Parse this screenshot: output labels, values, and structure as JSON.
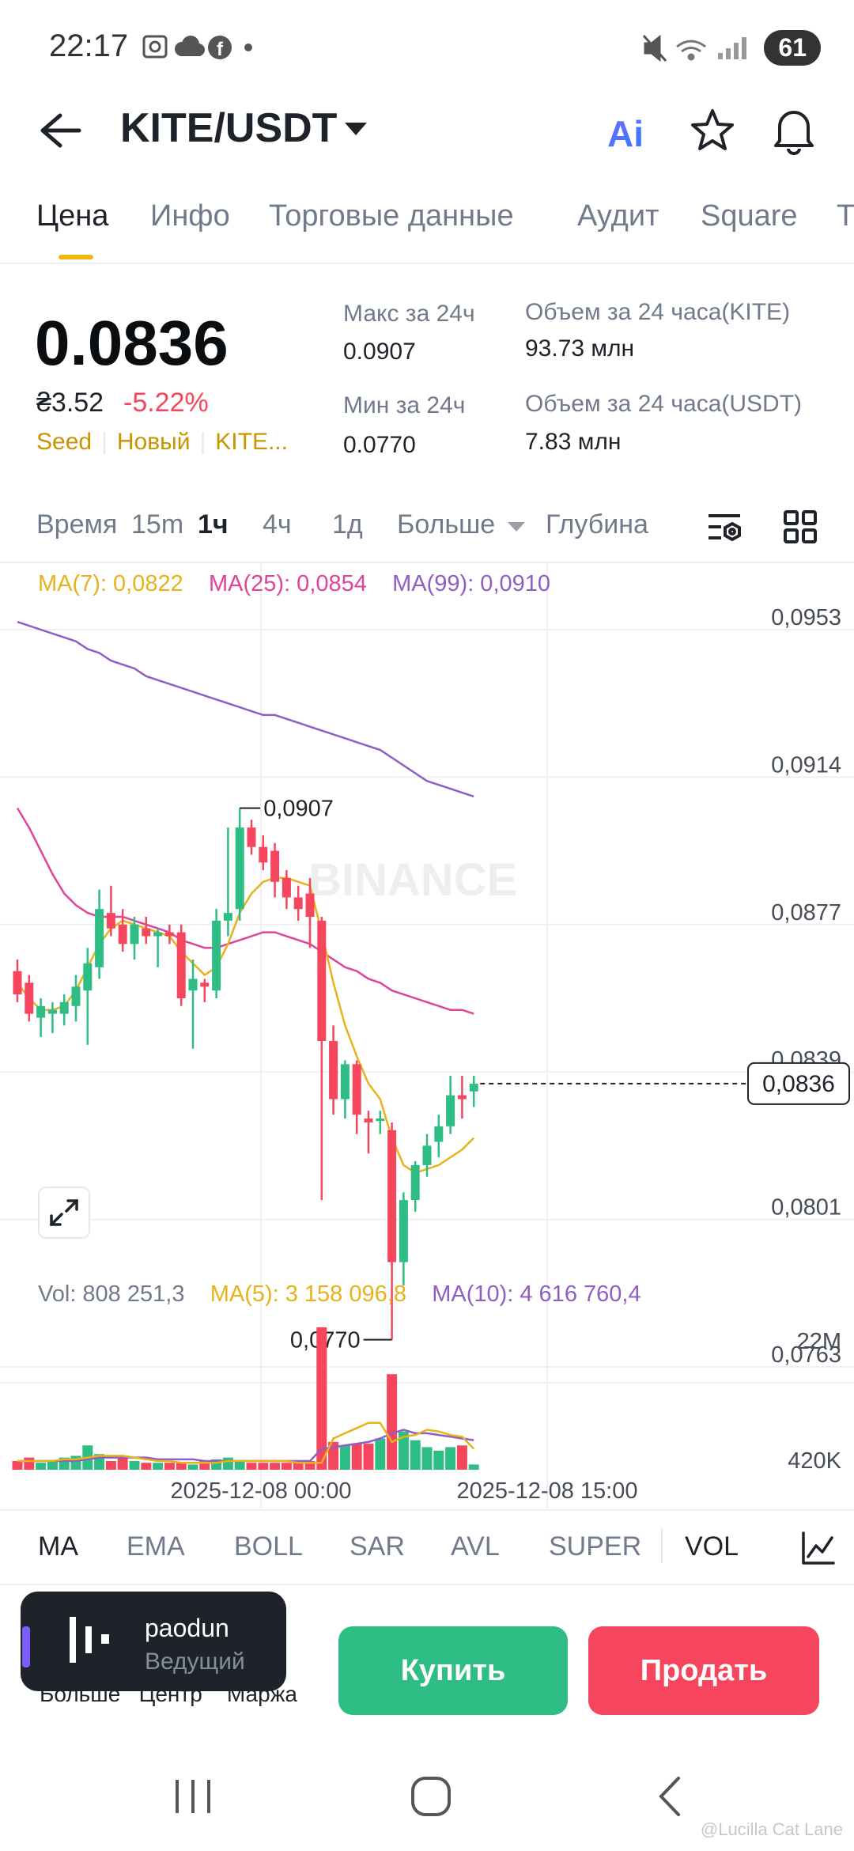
{
  "status_bar": {
    "time": "22:17",
    "battery": "61",
    "icons_left": [
      "screenshot-icon",
      "cloud-icon",
      "facebook-icon",
      "dot-icon"
    ],
    "icons_right": [
      "mute-icon",
      "wifi-icon",
      "signal-icon",
      "battery-icon"
    ]
  },
  "header": {
    "pair": "KITE/USDT",
    "ai_label": "Ai"
  },
  "tabs": [
    {
      "label": "Цена",
      "active": true
    },
    {
      "label": "Инфо"
    },
    {
      "label": "Торговые данные"
    },
    {
      "label": "Аудит"
    },
    {
      "label": "Square"
    },
    {
      "label": "Т"
    }
  ],
  "price": {
    "last": "0.0836",
    "uah": "₴3.52",
    "change": "-5.22%",
    "tags": [
      "Seed",
      "Новый",
      "KITE..."
    ]
  },
  "stats": {
    "high_label": "Макс за 24ч",
    "high_value": "0.0907",
    "low_label": "Мин за 24ч",
    "low_value": "0.0770",
    "vol_base_label": "Объем за 24 часа(KITE)",
    "vol_base_value": "93.73 млн",
    "vol_quote_label": "Объем за 24 часа(USDT)",
    "vol_quote_value": "7.83 млн"
  },
  "intervals": {
    "items": [
      "Время",
      "15m",
      "1ч",
      "4ч",
      "1д",
      "Больше",
      "Глубина"
    ],
    "active": "1ч"
  },
  "ma_legend": {
    "ma7": "MA(7): 0,0822",
    "ma25": "MA(25): 0,0854",
    "ma99": "MA(99): 0,0910"
  },
  "vol_legend": {
    "vol": "Vol: 808 251,3",
    "ma5": "MA(5): 3 158 096,8",
    "ma10": "MA(10): 4 616 760,4"
  },
  "colors": {
    "up": "#2ebd85",
    "down": "#f6465d",
    "ma7": "#e8b21c",
    "ma25": "#e0449a",
    "ma99": "#8e5ec3",
    "accent": "#f0b90b"
  },
  "chart_data": {
    "type": "candlestick",
    "watermark": "BINANCE",
    "y_ticks": [
      "0,0953",
      "0,0914",
      "0,0877",
      "0,0839",
      "0,0801",
      "0,0763"
    ],
    "ylim": [
      0.0763,
      0.0953
    ],
    "current_price_label": "0,0836",
    "high_label": "0,0907",
    "low_label": "0,0770",
    "x_ticks": [
      "2025-12-08 00:00",
      "2025-12-08 15:00"
    ],
    "volume_ticks": [
      "22M",
      "420K"
    ],
    "candles": [
      {
        "o": 0.0865,
        "h": 0.0868,
        "l": 0.0857,
        "c": 0.0859
      },
      {
        "o": 0.0862,
        "h": 0.0864,
        "l": 0.0852,
        "c": 0.0854
      },
      {
        "o": 0.0853,
        "h": 0.0858,
        "l": 0.0848,
        "c": 0.0856
      },
      {
        "o": 0.0854,
        "h": 0.0857,
        "l": 0.0849,
        "c": 0.0855
      },
      {
        "o": 0.0854,
        "h": 0.0859,
        "l": 0.0851,
        "c": 0.0857
      },
      {
        "o": 0.0856,
        "h": 0.0864,
        "l": 0.0852,
        "c": 0.0861
      },
      {
        "o": 0.086,
        "h": 0.0871,
        "l": 0.0846,
        "c": 0.0867
      },
      {
        "o": 0.0866,
        "h": 0.0886,
        "l": 0.0863,
        "c": 0.0881
      },
      {
        "o": 0.088,
        "h": 0.0887,
        "l": 0.0874,
        "c": 0.0876
      },
      {
        "o": 0.0877,
        "h": 0.0881,
        "l": 0.087,
        "c": 0.0872
      },
      {
        "o": 0.0872,
        "h": 0.0879,
        "l": 0.0868,
        "c": 0.0877
      },
      {
        "o": 0.0876,
        "h": 0.0879,
        "l": 0.0872,
        "c": 0.0874
      },
      {
        "o": 0.0874,
        "h": 0.0876,
        "l": 0.0866,
        "c": 0.0875
      },
      {
        "o": 0.0875,
        "h": 0.0877,
        "l": 0.0872,
        "c": 0.0874
      },
      {
        "o": 0.0875,
        "h": 0.0877,
        "l": 0.0856,
        "c": 0.0858
      },
      {
        "o": 0.086,
        "h": 0.0868,
        "l": 0.0845,
        "c": 0.0863
      },
      {
        "o": 0.0862,
        "h": 0.0863,
        "l": 0.0857,
        "c": 0.0861
      },
      {
        "o": 0.086,
        "h": 0.0881,
        "l": 0.0858,
        "c": 0.0878
      },
      {
        "o": 0.0878,
        "h": 0.0902,
        "l": 0.0874,
        "c": 0.088
      },
      {
        "o": 0.0881,
        "h": 0.0907,
        "l": 0.0878,
        "c": 0.0902
      },
      {
        "o": 0.0902,
        "h": 0.0904,
        "l": 0.0895,
        "c": 0.0897
      },
      {
        "o": 0.0897,
        "h": 0.09,
        "l": 0.0891,
        "c": 0.0893
      },
      {
        "o": 0.0896,
        "h": 0.0898,
        "l": 0.0884,
        "c": 0.0888
      },
      {
        "o": 0.0889,
        "h": 0.0891,
        "l": 0.0881,
        "c": 0.0884
      },
      {
        "o": 0.0884,
        "h": 0.0887,
        "l": 0.0878,
        "c": 0.0881
      },
      {
        "o": 0.0885,
        "h": 0.0889,
        "l": 0.0871,
        "c": 0.0879
      },
      {
        "o": 0.0878,
        "h": 0.0879,
        "l": 0.0806,
        "c": 0.0847
      },
      {
        "o": 0.0847,
        "h": 0.0851,
        "l": 0.0828,
        "c": 0.0832
      },
      {
        "o": 0.0832,
        "h": 0.0842,
        "l": 0.0827,
        "c": 0.0841
      },
      {
        "o": 0.0841,
        "h": 0.0842,
        "l": 0.0823,
        "c": 0.0828
      },
      {
        "o": 0.0827,
        "h": 0.0829,
        "l": 0.0818,
        "c": 0.0826
      },
      {
        "o": 0.0827,
        "h": 0.0829,
        "l": 0.0823,
        "c": 0.0827
      },
      {
        "o": 0.0824,
        "h": 0.0826,
        "l": 0.077,
        "c": 0.079
      },
      {
        "o": 0.079,
        "h": 0.0808,
        "l": 0.0784,
        "c": 0.0806
      },
      {
        "o": 0.0806,
        "h": 0.0816,
        "l": 0.0803,
        "c": 0.0815
      },
      {
        "o": 0.0815,
        "h": 0.0823,
        "l": 0.0812,
        "c": 0.082
      },
      {
        "o": 0.0821,
        "h": 0.0828,
        "l": 0.0817,
        "c": 0.0825
      },
      {
        "o": 0.0825,
        "h": 0.0838,
        "l": 0.0823,
        "c": 0.0833
      },
      {
        "o": 0.0833,
        "h": 0.0838,
        "l": 0.0827,
        "c": 0.0832
      },
      {
        "o": 0.0834,
        "h": 0.0838,
        "l": 0.083,
        "c": 0.0836
      }
    ],
    "volumes": [
      0.05,
      0.07,
      0.04,
      0.05,
      0.07,
      0.08,
      0.14,
      0.09,
      0.05,
      0.08,
      0.05,
      0.04,
      0.04,
      0.04,
      0.04,
      0.03,
      0.05,
      0.06,
      0.07,
      0.05,
      0.04,
      0.04,
      0.04,
      0.04,
      0.04,
      0.05,
      0.82,
      0.16,
      0.14,
      0.15,
      0.15,
      0.18,
      0.55,
      0.22,
      0.17,
      0.13,
      0.11,
      0.13,
      0.14,
      0.03
    ],
    "ma7": [
      0.0862,
      0.0858,
      0.0855,
      0.0855,
      0.0856,
      0.086,
      0.0866,
      0.0872,
      0.0876,
      0.0878,
      0.0877,
      0.0876,
      0.0875,
      0.0874,
      0.087,
      0.0867,
      0.0864,
      0.0866,
      0.0872,
      0.088,
      0.0885,
      0.0888,
      0.0889,
      0.0889,
      0.0888,
      0.0887,
      0.0875,
      0.0862,
      0.0851,
      0.0843,
      0.0836,
      0.0832,
      0.0822,
      0.0815,
      0.0813,
      0.0814,
      0.0815,
      0.0817,
      0.0819,
      0.0822
    ],
    "ma25": [
      0.0907,
      0.0902,
      0.0896,
      0.089,
      0.0885,
      0.0882,
      0.088,
      0.0879,
      0.0879,
      0.0879,
      0.0878,
      0.0877,
      0.0876,
      0.0875,
      0.0873,
      0.0872,
      0.0871,
      0.0871,
      0.0872,
      0.0873,
      0.0874,
      0.0875,
      0.0875,
      0.0874,
      0.0873,
      0.0872,
      0.087,
      0.0868,
      0.0866,
      0.0865,
      0.0863,
      0.0862,
      0.086,
      0.0859,
      0.0858,
      0.0857,
      0.0856,
      0.0855,
      0.0855,
      0.0854
    ],
    "ma99": [
      0.0955,
      0.0954,
      0.0953,
      0.0952,
      0.0951,
      0.095,
      0.0948,
      0.0947,
      0.0945,
      0.0944,
      0.0943,
      0.0941,
      0.094,
      0.0939,
      0.0938,
      0.0937,
      0.0936,
      0.0935,
      0.0934,
      0.0933,
      0.0932,
      0.0931,
      0.0931,
      0.093,
      0.0929,
      0.0928,
      0.0927,
      0.0926,
      0.0925,
      0.0924,
      0.0923,
      0.0922,
      0.092,
      0.0918,
      0.0916,
      0.0914,
      0.0913,
      0.0912,
      0.0911,
      0.091
    ],
    "vol_ma5": [
      0.05,
      0.05,
      0.05,
      0.05,
      0.06,
      0.06,
      0.07,
      0.08,
      0.08,
      0.08,
      0.07,
      0.06,
      0.05,
      0.05,
      0.04,
      0.04,
      0.04,
      0.04,
      0.05,
      0.05,
      0.05,
      0.05,
      0.05,
      0.05,
      0.04,
      0.04,
      0.04,
      0.18,
      0.21,
      0.24,
      0.27,
      0.27,
      0.16,
      0.19,
      0.2,
      0.23,
      0.22,
      0.2,
      0.19,
      0.12
    ],
    "vol_ma10": [
      0.05,
      0.05,
      0.05,
      0.05,
      0.05,
      0.05,
      0.06,
      0.07,
      0.07,
      0.07,
      0.07,
      0.07,
      0.06,
      0.06,
      0.06,
      0.06,
      0.05,
      0.05,
      0.05,
      0.05,
      0.05,
      0.05,
      0.05,
      0.05,
      0.05,
      0.05,
      0.12,
      0.13,
      0.14,
      0.15,
      0.16,
      0.18,
      0.21,
      0.23,
      0.21,
      0.21,
      0.2,
      0.19,
      0.18,
      0.17
    ]
  },
  "indicators": {
    "items": [
      "MA",
      "EMA",
      "BOLL",
      "SAR",
      "AVL",
      "SUPER",
      "VOL"
    ],
    "active_main": "MA",
    "active_sub": "VOL"
  },
  "bottom": {
    "labels": [
      "Больше",
      "Центр",
      "Маржа"
    ],
    "overlay_name": "paodun",
    "overlay_role": "Ведущий",
    "buy": "Купить",
    "sell": "Продать"
  },
  "watermark_text": "@Lucilla Cat Lane"
}
